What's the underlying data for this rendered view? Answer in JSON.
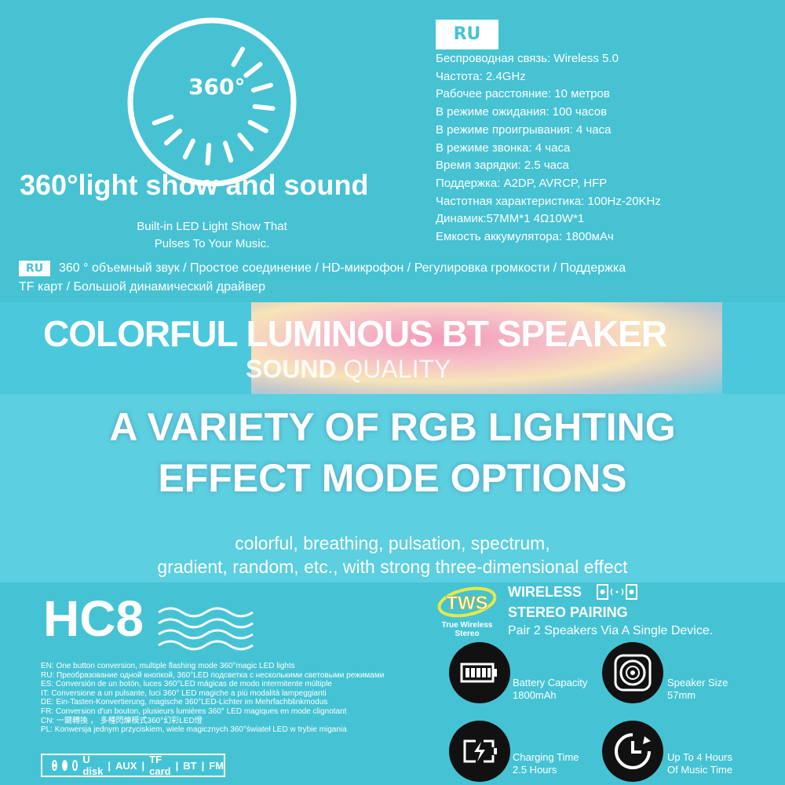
{
  "light_show": {
    "badge": "360°",
    "title": "360°light show and sound",
    "subtitle_lines": [
      "Built-in LED Light Show That",
      "Pulses To Your Music."
    ]
  },
  "specs": {
    "lang_badge": "RU",
    "lines": [
      "Беспроводная связь: Wireless 5.0",
      "Частота: 2.4GHz",
      "Рабочее расстояние: 10 метров",
      "В режиме ожидания: 100 часов",
      "В режиме проигрывания: 4 часа",
      "В режиме звонка: 4 часа",
      "Время зарядки: 2.5 часа",
      "Поддержка: A2DP, AVRCP,  HFP",
      "Частотная характеристика: 100Hz-20KHz",
      "Динамик:57MM*1  4Ω10W*1",
      "Емкость аккумулятора: 1800мАч"
    ]
  },
  "features_ru": {
    "lang_badge": "RU",
    "line1": "360 ° объемный звук / Простое соединение / HD-микрофон / Регулировка громкости / Поддержка",
    "line2": "TF карт / Большой динамический драйвер"
  },
  "banner": {
    "title": "COLORFUL LUMINOUS  BT SPEAKER",
    "sub_bold": "SOUND",
    "sub_light": " QUALITY"
  },
  "headline": {
    "line1": "A VARIETY OF RGB LIGHTING",
    "line2": "EFFECT MODE OPTIONS",
    "desc1": "colorful, breathing, pulsation, spectrum,",
    "desc2": "gradient, random, etc., with strong three-dimensional effect"
  },
  "model": "HC8",
  "languages": [
    "EN: One button conversion, multiple flashing mode 360°magic LED lights",
    "RU: Преобразование одной кнопкой, 360°LED подсветка с несколькими световыми режимами",
    "ES: Conversión de un botón, luces 360°LED mágicas de modo intermitente múltiple",
    "IT: Conversione a un pulsante, luci 360° LED magiche a più modalità lampeggianti",
    "DE: Ein-Tasten-Konvertierung, magische 360°LED-Lichter im Mehrfachblinkmodus",
    "FR: Conversion d'un bouton, plusieurs lumières 360° LED magiques en mode clignotant",
    "CN: 一鍵轉換 ， 多種閃爍模式360°幻彩LED燈",
    "PL: Konwersja jednym przyciskiem, wiele magicznych 360°świateł LED w trybie migania"
  ],
  "modes": [
    "U disk",
    "AUX",
    "TF card",
    "BT",
    "FM"
  ],
  "tws": {
    "logo": "TWS",
    "logo_caption": "True Wireless Stereo",
    "title1": "WIRELESS",
    "title2": "STEREO PAIRING",
    "desc": "Pair 2 Speakers Via A Single Device."
  },
  "feature_icons": [
    {
      "icon": "battery-icon",
      "line1": "Battery Capacity",
      "line2": "1800mAh"
    },
    {
      "icon": "speaker-icon",
      "line1": "Speaker Size",
      "line2": "57mm"
    },
    {
      "icon": "charging-icon",
      "line1": "Charging Time",
      "line2": "2.5 Hours"
    },
    {
      "icon": "clock-icon",
      "line1": "Up To 4 Hours",
      "line2": "Of Music Time"
    }
  ],
  "colors": {
    "background": "#46c2d3",
    "panel": "#5ccfe0",
    "icon_bg": "#111111",
    "tws_logo": "#e8e84a"
  }
}
